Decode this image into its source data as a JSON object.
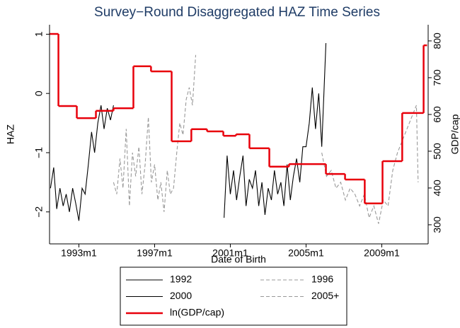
{
  "chart_data": {
    "type": "line",
    "title": "Survey−Round Disaggregated HAZ Time Series",
    "x_label": "Date of Birth",
    "y_label": "HAZ",
    "y2_label": "GDP/cap",
    "xlim": [
      1991.45,
      2011.45
    ],
    "xticks": [
      {
        "value": 1993,
        "label": "1993m1"
      },
      {
        "value": 1997,
        "label": "1997m1"
      },
      {
        "value": 2001,
        "label": "2001m1"
      },
      {
        "value": 2005,
        "label": "2005m1"
      },
      {
        "value": 2009,
        "label": "2009m1"
      }
    ],
    "ylim": [
      -2.54,
      1.16
    ],
    "yticks": [
      {
        "value": -2,
        "label": "−2"
      },
      {
        "value": -1,
        "label": "−1"
      },
      0,
      1
    ],
    "y2lim": [
      248,
      844
    ],
    "y2ticks": [
      300,
      400,
      500,
      600,
      700,
      800
    ],
    "series": [
      {
        "name": "1992",
        "color": "#000000",
        "style": "solid",
        "x": [
          1991.5,
          1991.67,
          1991.83,
          1992.0,
          1992.17,
          1992.33,
          1992.5,
          1992.67,
          1992.83,
          1993.0,
          1993.17,
          1993.33,
          1993.5,
          1993.67,
          1993.83,
          1994.0,
          1994.17,
          1994.33,
          1994.5,
          1994.67,
          1994.83
        ],
        "values": [
          -1.6,
          -1.25,
          -1.95,
          -1.6,
          -1.9,
          -1.7,
          -2.0,
          -1.6,
          -1.85,
          -2.15,
          -1.6,
          -1.7,
          -1.2,
          -0.65,
          -1.0,
          -0.5,
          -0.2,
          -0.6,
          -0.25,
          -0.45,
          -0.2
        ]
      },
      {
        "name": "1996",
        "color": "#999999",
        "style": "dashed",
        "x": [
          1994.83,
          1995.0,
          1995.17,
          1995.33,
          1995.5,
          1995.67,
          1995.83,
          1996.0,
          1996.17,
          1996.33,
          1996.5,
          1996.67,
          1996.83,
          1997.0,
          1997.17,
          1997.33,
          1997.5,
          1997.67,
          1997.83,
          1998.0,
          1998.17,
          1998.33,
          1998.5,
          1998.67,
          1998.83,
          1999.0,
          1999.17
        ],
        "values": [
          -1.5,
          -1.7,
          -1.1,
          -1.6,
          -0.6,
          -1.9,
          -1.0,
          -1.4,
          -0.9,
          -1.7,
          -1.2,
          -0.4,
          -1.5,
          -1.2,
          -1.8,
          -1.5,
          -2.0,
          -1.3,
          -1.7,
          -1.6,
          -1.0,
          -0.5,
          -0.7,
          -0.1,
          0.1,
          -0.2,
          0.65
        ]
      },
      {
        "name": "2000",
        "color": "#000000",
        "style": "solid",
        "x": [
          2000.67,
          2000.83,
          2001.0,
          2001.17,
          2001.33,
          2001.5,
          2001.67,
          2001.83,
          2002.0,
          2002.17,
          2002.33,
          2002.5,
          2002.67,
          2002.83,
          2003.0,
          2003.17,
          2003.33,
          2003.5,
          2003.67,
          2003.83,
          2004.0,
          2004.17,
          2004.33,
          2004.5,
          2004.67,
          2004.83,
          2005.0,
          2005.17,
          2005.33,
          2005.5,
          2005.67,
          2005.83,
          2006.05
        ],
        "values": [
          -2.1,
          -1.05,
          -1.7,
          -1.3,
          -1.8,
          -1.4,
          -1.05,
          -1.9,
          -1.45,
          -1.6,
          -1.3,
          -1.9,
          -1.5,
          -2.05,
          -1.6,
          -1.8,
          -1.3,
          -1.7,
          -1.5,
          -1.9,
          -1.2,
          -1.8,
          -1.4,
          -1.1,
          -1.5,
          -0.9,
          -0.9,
          -0.5,
          0.1,
          -0.6,
          0.0,
          -0.9,
          0.85
        ]
      },
      {
        "name": "2005+",
        "color": "#999999",
        "style": "dashed",
        "x": [
          2005.83,
          2006.08,
          2006.33,
          2006.58,
          2006.83,
          2007.08,
          2007.33,
          2007.58,
          2007.83,
          2008.08,
          2008.33,
          2008.58,
          2008.83,
          2009.08,
          2009.33,
          2009.58,
          2009.83,
          2010.08,
          2010.33,
          2010.58,
          2010.83,
          2010.92
        ],
        "values": [
          -1.0,
          -1.4,
          -1.3,
          -1.6,
          -1.5,
          -1.8,
          -1.6,
          -1.7,
          -1.9,
          -1.7,
          -2.1,
          -1.9,
          -2.2,
          -1.8,
          -1.9,
          -1.3,
          -1.0,
          -0.8,
          -0.6,
          -0.4,
          -0.2,
          -1.5
        ]
      },
      {
        "name": "ln(GDP/cap)",
        "color": "#e8000b",
        "style": "step",
        "axis": "y2",
        "x": [
          1991.47,
          1991.92,
          1992.89,
          1993.9,
          1994.83,
          1995.88,
          1996.81,
          1997.9,
          1998.94,
          1999.77,
          2000.63,
          2001.3,
          2002.01,
          2003.06,
          2004.1,
          2006.05,
          2007.06,
          2008.1,
          2009.04,
          2010.08,
          2011.21,
          2011.39
        ],
        "values": [
          819,
          623,
          590,
          610,
          617,
          731,
          717,
          527,
          560,
          554,
          542,
          546,
          508,
          458,
          465,
          438,
          423,
          358,
          473,
          604,
          788,
          788
        ]
      }
    ],
    "legend": {
      "rows": [
        [
          0,
          1
        ],
        [
          2,
          3
        ],
        [
          4
        ]
      ]
    }
  }
}
